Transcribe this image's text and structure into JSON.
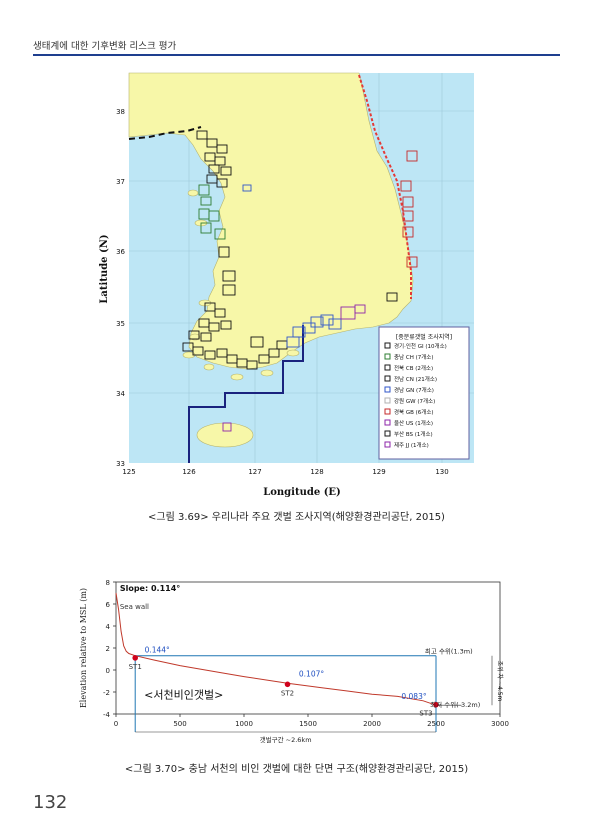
{
  "header": {
    "title": "생태계에 대한 기후변화 리스크 평가"
  },
  "figure1": {
    "caption": "<그림 3.69> 우리나라 주요 갯벌 조사지역(해양환경관리공단, 2015)",
    "x_label": "Longitude (E)",
    "y_label": "Latitude (N)",
    "x_ticks": [
      "125",
      "126",
      "127",
      "128",
      "129",
      "130"
    ],
    "y_ticks": [
      "38",
      "37",
      "36",
      "35",
      "34",
      "33"
    ],
    "legend": {
      "title": "[중분류갯벌 조사지역]",
      "items": [
        {
          "label": "경기·인천 GI (10개소)",
          "color": "#1a1a1a"
        },
        {
          "label": "충남 CH (7개소)",
          "color": "#2e7d32"
        },
        {
          "label": "전북 CB (2개소)",
          "color": "#1a1a1a"
        },
        {
          "label": "전남 CN (21개소)",
          "color": "#1a1a1a"
        },
        {
          "label": "경남 GN (7개소)",
          "color": "#2f56c9"
        },
        {
          "label": "강원 GW (7개소)",
          "color": "#b0b0b0"
        },
        {
          "label": "경북 GB (6개소)",
          "color": "#c62828"
        },
        {
          "label": "울산 US (1개소)",
          "color": "#8e24aa"
        },
        {
          "label": "부산 BS (1개소)",
          "color": "#1a1a1a"
        },
        {
          "label": "제주 JJ (1개소)",
          "color": "#8e24aa"
        }
      ]
    },
    "colors": {
      "land": "#f7f7a8",
      "sea": "#bde6f5",
      "boundary": "#1a237e"
    }
  },
  "figure2": {
    "caption": "<그림 3.70> 충남 서천의 비인 갯벌에 대한 단면 구조(해양환경관리공단, 2015)",
    "chart_data": {
      "type": "line",
      "ylabel": "Elevation relative to MSL (m)",
      "xlim": [
        0,
        3000
      ],
      "ylim": [
        -4,
        8
      ],
      "x_ticks": [
        "0",
        "500",
        "1000",
        "1500",
        "2000",
        "2500",
        "3000"
      ],
      "y_ticks": [
        "8",
        "6",
        "4",
        "2",
        "0",
        "-2",
        "-4"
      ],
      "series": [
        {
          "values": [
            [
              0,
              7.0
            ],
            [
              20,
              5.5
            ],
            [
              40,
              3.5
            ],
            [
              60,
              2.2
            ],
            [
              80,
              1.7
            ],
            [
              100,
              1.5
            ],
            [
              150,
              1.3
            ],
            [
              300,
              0.9
            ],
            [
              500,
              0.4
            ],
            [
              800,
              -0.2
            ],
            [
              1000,
              -0.6
            ],
            [
              1340,
              -1.2
            ],
            [
              1600,
              -1.6
            ],
            [
              1800,
              -1.9
            ],
            [
              2000,
              -2.2
            ],
            [
              2200,
              -2.4
            ],
            [
              2400,
              -2.8
            ],
            [
              2500,
              -3.2
            ]
          ]
        }
      ],
      "stations": [
        {
          "label": "ST1",
          "x": 150,
          "y": 1.1
        },
        {
          "label": "ST2",
          "x": 1340,
          "y": -1.3
        },
        {
          "label": "ST3",
          "x": 2500,
          "y": -3.15
        }
      ],
      "slopes": [
        "0.144°",
        "0.107°",
        "0.083°"
      ],
      "annotations": {
        "slope_title": "Slope: 0.114°",
        "sea_wall": "Sea wall",
        "high_tide": "최고 수위(1.3m)",
        "low_tide": "최저 수위(-3.2m)",
        "tidal_range": "조위 차 ~4.5m",
        "mudflat_span": "갯벌구간 ~2.6km",
        "site_name": "<서천비인갯벌>"
      },
      "colors": {
        "profile": "#c0392b",
        "high_line": "#1f77b4",
        "station": "#d0021b",
        "slope_text": "#1f4fc1"
      }
    }
  },
  "page": {
    "number": "132"
  }
}
